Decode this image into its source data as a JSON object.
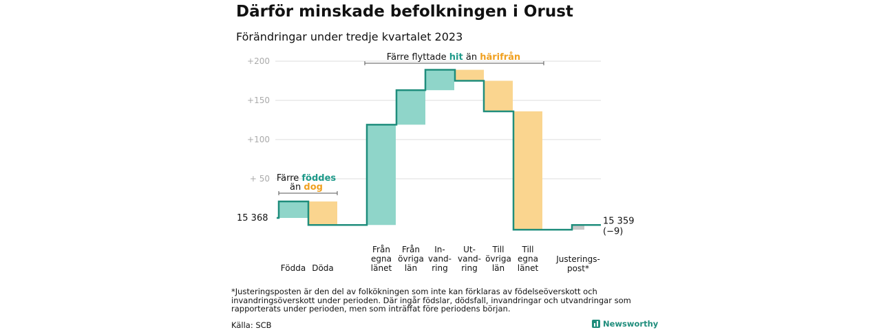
{
  "title": "Därför minskade befolkningen i Orust",
  "subtitle": "Förändringar under tredje kvartalet 2023",
  "chart_data": {
    "type": "waterfall",
    "start_value": 15368,
    "end_value": 15359,
    "start_label": "15  368",
    "end_label": "15 359",
    "end_change_label": "(−9)",
    "y_ticks": [
      "+200",
      "+150",
      "+100",
      "+  50"
    ],
    "y_tick_values": [
      200,
      150,
      100,
      50
    ],
    "ylim": [
      -25,
      210
    ],
    "grid": true,
    "steps": [
      {
        "label": [
          "Födda"
        ],
        "delta": 21,
        "type": "positive"
      },
      {
        "label": [
          "Döda"
        ],
        "delta": -30,
        "type": "negative"
      },
      {
        "label": [
          "Från",
          "egna",
          "länet"
        ],
        "delta": 128,
        "type": "positive"
      },
      {
        "label": [
          "Från",
          "övriga",
          "län"
        ],
        "delta": 44,
        "type": "positive"
      },
      {
        "label": [
          "In-",
          "vand-",
          "ring"
        ],
        "delta": 26,
        "type": "positive"
      },
      {
        "label": [
          "Ut-",
          "vand-",
          "ring"
        ],
        "delta": -14,
        "type": "negative"
      },
      {
        "label": [
          "Till",
          "övriga",
          "län"
        ],
        "delta": -39,
        "type": "negative"
      },
      {
        "label": [
          "Till",
          "egna",
          "länet"
        ],
        "delta": -151,
        "type": "negative"
      },
      {
        "label": [
          "Justerings-",
          "post*"
        ],
        "delta": 6,
        "type": "adjustment"
      }
    ],
    "annotations": {
      "births": {
        "line1": "Färre",
        "highlight1": "föddes",
        "line2_prefix": "än",
        "highlight2": "dog"
      },
      "migration": {
        "prefix": "Färre flyttade",
        "highlight1": "hit",
        "middle": "än",
        "highlight2": "härifrån"
      }
    },
    "colors": {
      "positive": "#8fd5c9",
      "negative": "#fad58f",
      "line": "#1f8d7c",
      "adjustment": "#c8c8c8",
      "accent_teal": "#1f9a8a",
      "accent_orange": "#f0a020",
      "grid": "#dddddd",
      "tick": "#aaaaaa"
    }
  },
  "footnote": "*Justeringsposten är den del av folkökningen som inte kan förklaras av födelseöverskott och invandringsöverskott under perioden. Där ingår födslar, dödsfall, invandringar och utvandringar som rapporterats under perioden, men som inträffat före periodens början.",
  "source": "Källa: SCB",
  "brand": "Newsworthy"
}
